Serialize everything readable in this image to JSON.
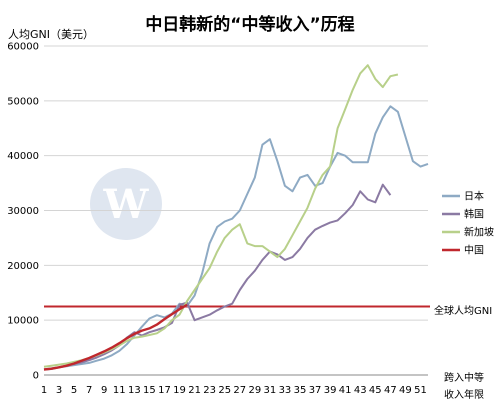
{
  "chart_data": {
    "type": "line",
    "title": "中日韩新的“中等收入”历程",
    "ylabel": "人均GNI（美元）",
    "xlabel_line1": "跨入中等",
    "xlabel_line2": "收入年限",
    "ylim": [
      0,
      60000
    ],
    "xlim": [
      1,
      52
    ],
    "yticks": [
      0,
      10000,
      20000,
      30000,
      40000,
      50000,
      60000
    ],
    "xticks": [
      1,
      3,
      5,
      7,
      9,
      11,
      13,
      15,
      17,
      19,
      21,
      23,
      25,
      27,
      29,
      31,
      33,
      35,
      37,
      39,
      41,
      43,
      45,
      47,
      49,
      51
    ],
    "grid": "horizontal",
    "legend_position": "right",
    "reference_line": {
      "value": 12500,
      "label": "全球人均GNI",
      "color": "#c0272d"
    },
    "series": [
      {
        "name": "日本",
        "color": "#8eaac4",
        "x": [
          1,
          2,
          3,
          4,
          5,
          6,
          7,
          8,
          9,
          10,
          11,
          12,
          13,
          14,
          15,
          16,
          17,
          18,
          19,
          20,
          21,
          22,
          23,
          24,
          25,
          26,
          27,
          28,
          29,
          30,
          31,
          32,
          33,
          34,
          35,
          36,
          37,
          38,
          39,
          40,
          41,
          42,
          43,
          44,
          45,
          46,
          47,
          48,
          49,
          50,
          51,
          52
        ],
        "values": [
          1000,
          1200,
          1400,
          1600,
          1800,
          2000,
          2200,
          2600,
          3000,
          3600,
          4400,
          5600,
          7200,
          8800,
          10300,
          10900,
          10500,
          11200,
          13000,
          12600,
          14500,
          18500,
          24000,
          27000,
          28000,
          28500,
          30000,
          33000,
          36000,
          42000,
          43000,
          39000,
          34500,
          33500,
          36000,
          36500,
          34500,
          35000,
          38000,
          40500,
          40000,
          38800,
          38800,
          38800,
          44000,
          47000,
          49000,
          48000,
          43500,
          39000,
          38000,
          38500
        ]
      },
      {
        "name": "韩国",
        "color": "#8b7aa3",
        "x": [
          1,
          2,
          3,
          4,
          5,
          6,
          7,
          8,
          9,
          10,
          11,
          12,
          13,
          14,
          15,
          16,
          17,
          18,
          19,
          20,
          21,
          22,
          23,
          24,
          25,
          26,
          27,
          28,
          29,
          30,
          31,
          32,
          33,
          34,
          35,
          36,
          37,
          38,
          39,
          40,
          41,
          42,
          43,
          44,
          45,
          46,
          47
        ],
        "values": [
          1000,
          1100,
          1400,
          1700,
          2000,
          2300,
          2700,
          3200,
          3800,
          4500,
          5400,
          6800,
          7800,
          7200,
          7800,
          8200,
          8700,
          9500,
          12800,
          13200,
          10000,
          10500,
          11000,
          11800,
          12500,
          13000,
          15500,
          17500,
          19000,
          21000,
          22500,
          22000,
          21000,
          21500,
          23000,
          25000,
          26500,
          27200,
          27800,
          28200,
          29500,
          31000,
          33500,
          32000,
          31500,
          34700,
          32800
        ]
      },
      {
        "name": "新加坡",
        "color": "#b8d08a",
        "x": [
          1,
          2,
          3,
          4,
          5,
          6,
          7,
          8,
          9,
          10,
          11,
          12,
          13,
          14,
          15,
          16,
          17,
          18,
          19,
          20,
          21,
          22,
          23,
          24,
          25,
          26,
          27,
          28,
          29,
          30,
          31,
          32,
          33,
          34,
          35,
          36,
          37,
          38,
          39,
          40,
          41,
          42,
          43,
          44,
          45,
          46,
          47,
          48
        ],
        "values": [
          1500,
          1700,
          1900,
          2100,
          2400,
          2700,
          3100,
          3600,
          4100,
          4700,
          5400,
          6200,
          6800,
          7000,
          7300,
          7600,
          8500,
          10000,
          11000,
          13500,
          15500,
          17500,
          19500,
          22500,
          25000,
          26500,
          27500,
          24000,
          23500,
          23500,
          22500,
          21500,
          23000,
          25500,
          28000,
          30500,
          34000,
          36500,
          38000,
          45000,
          48500,
          52000,
          55000,
          56500,
          54000,
          52500,
          54500,
          54800
        ]
      },
      {
        "name": "中国",
        "color": "#c0272d",
        "x": [
          1,
          2,
          3,
          4,
          5,
          6,
          7,
          8,
          9,
          10,
          11,
          12,
          13,
          14,
          15,
          16,
          17,
          18,
          19,
          20
        ],
        "values": [
          1000,
          1150,
          1400,
          1700,
          2100,
          2600,
          3100,
          3700,
          4300,
          5000,
          5800,
          6700,
          7500,
          8100,
          8500,
          9200,
          10200,
          11100,
          12000,
          12800
        ]
      }
    ]
  }
}
